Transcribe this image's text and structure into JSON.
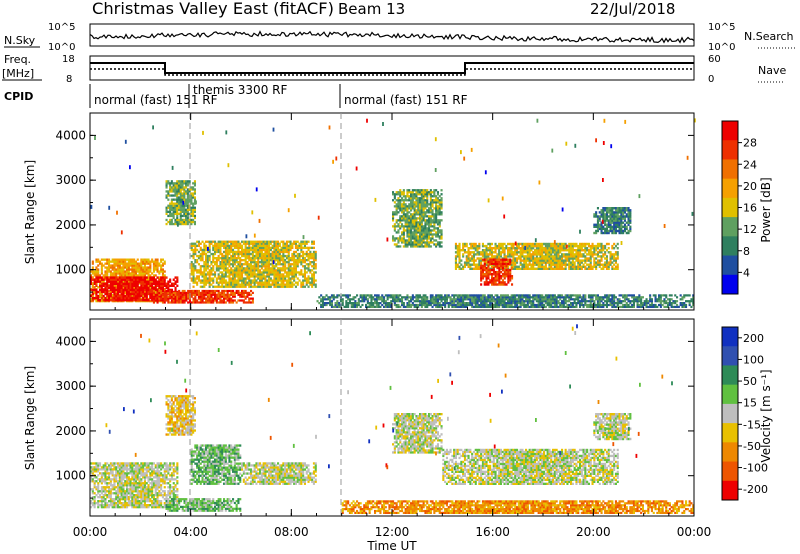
{
  "header": {
    "title": "Christmas Valley East (fitACF)",
    "beam": "Beam 13",
    "date": "22/Jul/2018"
  },
  "noise_panel": {
    "left_label": "N.Sky",
    "right_label": "N.Search",
    "left_ticks": [
      "10^5",
      "10^0"
    ],
    "right_ticks": [
      "10^5",
      "10^0"
    ]
  },
  "freq_panel": {
    "left_label_1": "Freq.",
    "left_label_2": "[MHz]",
    "right_label": "Nave",
    "left_ticks": [
      "18",
      "8"
    ],
    "right_ticks": [
      "60",
      "0"
    ]
  },
  "cpid": {
    "label": "CPID",
    "programs": [
      {
        "name": "normal (fast) 151 RF",
        "start_hour": 0.0
      },
      {
        "name": "themis 3300 RF",
        "start_hour": 3.95
      },
      {
        "name": "normal (fast) 151 RF",
        "start_hour": 9.95
      }
    ]
  },
  "colors": {
    "power_scale": [
      "#0000ee",
      "#1f4fa0",
      "#2f7f5f",
      "#5fa060",
      "#e0c000",
      "#f5a000",
      "#f07000",
      "#ee3000",
      "#ee0000"
    ],
    "velocity_scale": [
      "#1030c0",
      "#3050b0",
      "#2e8b57",
      "#60c040",
      "#bebebe",
      "#e8c000",
      "#ee8800",
      "#ee5500",
      "#ee0000"
    ]
  },
  "chart_data": [
    {
      "type": "heatmap",
      "parameter": "power",
      "ylabel": "Slant Range [km]",
      "ylim": [
        100,
        4500
      ],
      "yticks": [
        "1000",
        "2000",
        "3000",
        "4000"
      ],
      "xlim": [
        0,
        24
      ],
      "xticks": [
        "00:00",
        "04:00",
        "08:00",
        "12:00",
        "16:00",
        "20:00",
        "00:00"
      ],
      "colorbar_label": "Power [dB]",
      "colorbar_ticks": [
        "4",
        "8",
        "12",
        "16",
        "20",
        "24",
        "28"
      ],
      "regions": [
        {
          "t0": 0.0,
          "t1": 3.0,
          "r0": 280,
          "r1": 1250,
          "level": 5
        },
        {
          "t0": 0.0,
          "t1": 3.5,
          "r0": 300,
          "r1": 850,
          "level": 8
        },
        {
          "t0": 2.5,
          "t1": 6.5,
          "r0": 250,
          "r1": 550,
          "level": 7
        },
        {
          "t0": 3.0,
          "t1": 4.2,
          "r0": 2000,
          "r1": 3000,
          "level": 3
        },
        {
          "t0": 4.0,
          "t1": 9.0,
          "r0": 600,
          "r1": 1650,
          "level": 4
        },
        {
          "t0": 9.0,
          "t1": 24.0,
          "r0": 150,
          "r1": 450,
          "level": 2
        },
        {
          "t0": 12.0,
          "t1": 14.0,
          "r0": 1500,
          "r1": 2800,
          "level": 3
        },
        {
          "t0": 14.5,
          "t1": 21.0,
          "r0": 1000,
          "r1": 1600,
          "level": 4
        },
        {
          "t0": 15.5,
          "t1": 16.8,
          "r0": 650,
          "r1": 1250,
          "level": 7
        },
        {
          "t0": 20.0,
          "t1": 21.5,
          "r0": 1800,
          "r1": 2400,
          "level": 2
        }
      ]
    },
    {
      "type": "heatmap",
      "parameter": "velocity",
      "ylabel": "Slant Range [km]",
      "ylim": [
        100,
        4500
      ],
      "yticks": [
        "1000",
        "2000",
        "3000",
        "4000"
      ],
      "xlim": [
        0,
        24
      ],
      "xticks": [
        "00:00",
        "04:00",
        "08:00",
        "12:00",
        "16:00",
        "20:00",
        "00:00"
      ],
      "xlabel": "Time UT",
      "colorbar_label": "Velocity [m s⁻¹]",
      "colorbar_ticks": [
        "200",
        "100",
        "50",
        "15",
        "-15",
        "-50",
        "-100",
        "-200"
      ],
      "regions": [
        {
          "t0": 0.0,
          "t1": 3.5,
          "r0": 280,
          "r1": 1300,
          "level": 4
        },
        {
          "t0": 3.0,
          "t1": 4.2,
          "r0": 1900,
          "r1": 2800,
          "level": 5
        },
        {
          "t0": 3.0,
          "t1": 6.0,
          "r0": 200,
          "r1": 500,
          "level": 3
        },
        {
          "t0": 4.0,
          "t1": 6.0,
          "r0": 800,
          "r1": 1700,
          "level": 3
        },
        {
          "t0": 6.0,
          "t1": 9.0,
          "r0": 800,
          "r1": 1300,
          "level": 4
        },
        {
          "t0": 10.0,
          "t1": 24.0,
          "r0": 150,
          "r1": 450,
          "level": 6
        },
        {
          "t0": 12.0,
          "t1": 14.0,
          "r0": 1500,
          "r1": 2400,
          "level": 4
        },
        {
          "t0": 14.0,
          "t1": 21.0,
          "r0": 800,
          "r1": 1600,
          "level": 4
        },
        {
          "t0": 20.0,
          "t1": 21.5,
          "r0": 1800,
          "r1": 2400,
          "level": 4
        }
      ]
    }
  ]
}
